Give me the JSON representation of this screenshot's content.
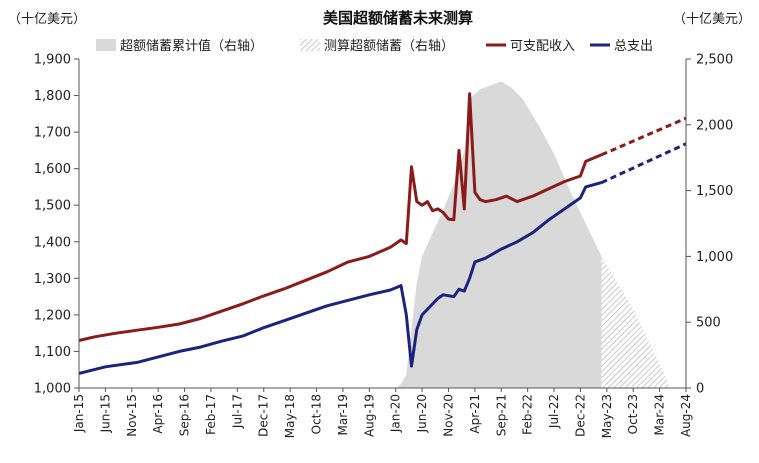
{
  "chart_data": {
    "type": "line",
    "title": "美国超额储蓄未来测算",
    "left_unit": "（十亿美元）",
    "right_unit": "（十亿美元）",
    "left_axis": {
      "min": 1000,
      "max": 1900,
      "ticks": [
        "1,000",
        "1,100",
        "1,200",
        "1,300",
        "1,400",
        "1,500",
        "1,600",
        "1,700",
        "1,800",
        "1,900"
      ]
    },
    "right_axis": {
      "min": 0,
      "max": 2500,
      "ticks": [
        "0",
        "500",
        "1,000",
        "1,500",
        "2,000",
        "2,500"
      ]
    },
    "x_range": [
      "2015-01",
      "2024-08"
    ],
    "x_ticks": [
      "Jan-15",
      "Jun-15",
      "Nov-15",
      "Apr-16",
      "Sep-16",
      "Feb-17",
      "Jul-17",
      "Dec-17",
      "May-18",
      "Oct-18",
      "Mar-19",
      "Aug-19",
      "Jan-20",
      "Jun-20",
      "Nov-20",
      "Apr-21",
      "Sep-21",
      "Feb-22",
      "Jul-22",
      "Dec-22",
      "May-23",
      "Oct-23",
      "Mar-24",
      "Aug-24"
    ],
    "legend": [
      {
        "key": "cum",
        "label": "超额储蓄累计值（右轴）",
        "style": "area",
        "color": "#d9d9d9"
      },
      {
        "key": "est",
        "label": "测算超额储蓄（右轴）",
        "style": "hatch",
        "color": "#cfcfcf"
      },
      {
        "key": "income",
        "label": "可支配收入",
        "style": "line",
        "color": "#8b1a1a"
      },
      {
        "key": "spend",
        "label": "总支出",
        "style": "line",
        "color": "#1a237e"
      }
    ],
    "series": [
      {
        "key": "income",
        "name": "可支配收入",
        "axis": "left",
        "color": "#8b1a1a",
        "points": [
          [
            "2015-01",
            1130
          ],
          [
            "2015-04",
            1140
          ],
          [
            "2015-08",
            1150
          ],
          [
            "2015-12",
            1158
          ],
          [
            "2016-04",
            1166
          ],
          [
            "2016-08",
            1175
          ],
          [
            "2016-12",
            1190
          ],
          [
            "2017-04",
            1210
          ],
          [
            "2017-08",
            1230
          ],
          [
            "2017-12",
            1252
          ],
          [
            "2018-04",
            1272
          ],
          [
            "2018-08",
            1295
          ],
          [
            "2018-12",
            1318
          ],
          [
            "2019-04",
            1345
          ],
          [
            "2019-08",
            1360
          ],
          [
            "2019-12",
            1385
          ],
          [
            "2020-02",
            1405
          ],
          [
            "2020-03",
            1395
          ],
          [
            "2020-04",
            1605
          ],
          [
            "2020-05",
            1510
          ],
          [
            "2020-06",
            1500
          ],
          [
            "2020-07",
            1510
          ],
          [
            "2020-08",
            1485
          ],
          [
            "2020-09",
            1490
          ],
          [
            "2020-10",
            1480
          ],
          [
            "2020-11",
            1462
          ],
          [
            "2020-12",
            1460
          ],
          [
            "2021-01",
            1650
          ],
          [
            "2021-02",
            1490
          ],
          [
            "2021-03",
            1805
          ],
          [
            "2021-04",
            1535
          ],
          [
            "2021-05",
            1515
          ],
          [
            "2021-06",
            1510
          ],
          [
            "2021-08",
            1515
          ],
          [
            "2021-10",
            1525
          ],
          [
            "2021-12",
            1510
          ],
          [
            "2022-03",
            1525
          ],
          [
            "2022-06",
            1545
          ],
          [
            "2022-09",
            1565
          ],
          [
            "2022-12",
            1580
          ],
          [
            "2023-01",
            1620
          ],
          [
            "2023-04",
            1638
          ]
        ]
      },
      {
        "key": "income_proj",
        "name": "可支配收入（预测）",
        "axis": "left",
        "color": "#8b1a1a",
        "dashed": true,
        "points": [
          [
            "2023-04",
            1638
          ],
          [
            "2024-08",
            1738
          ]
        ]
      },
      {
        "key": "spend",
        "name": "总支出",
        "axis": "left",
        "color": "#1a237e",
        "points": [
          [
            "2015-01",
            1040
          ],
          [
            "2015-06",
            1058
          ],
          [
            "2015-12",
            1070
          ],
          [
            "2016-04",
            1085
          ],
          [
            "2016-08",
            1100
          ],
          [
            "2016-12",
            1112
          ],
          [
            "2017-04",
            1128
          ],
          [
            "2017-08",
            1142
          ],
          [
            "2017-12",
            1165
          ],
          [
            "2018-04",
            1185
          ],
          [
            "2018-08",
            1205
          ],
          [
            "2018-12",
            1225
          ],
          [
            "2019-04",
            1240
          ],
          [
            "2019-08",
            1255
          ],
          [
            "2019-12",
            1268
          ],
          [
            "2020-02",
            1280
          ],
          [
            "2020-03",
            1200
          ],
          [
            "2020-04",
            1060
          ],
          [
            "2020-05",
            1160
          ],
          [
            "2020-06",
            1200
          ],
          [
            "2020-08",
            1230
          ],
          [
            "2020-09",
            1245
          ],
          [
            "2020-10",
            1255
          ],
          [
            "2020-12",
            1250
          ],
          [
            "2021-01",
            1270
          ],
          [
            "2021-02",
            1265
          ],
          [
            "2021-03",
            1300
          ],
          [
            "2021-04",
            1345
          ],
          [
            "2021-06",
            1355
          ],
          [
            "2021-09",
            1380
          ],
          [
            "2021-12",
            1400
          ],
          [
            "2022-03",
            1425
          ],
          [
            "2022-06",
            1460
          ],
          [
            "2022-09",
            1490
          ],
          [
            "2022-12",
            1520
          ],
          [
            "2023-01",
            1550
          ],
          [
            "2023-04",
            1562
          ]
        ]
      },
      {
        "key": "spend_proj",
        "name": "总支出（预测）",
        "axis": "left",
        "color": "#1a237e",
        "dashed": true,
        "points": [
          [
            "2023-04",
            1562
          ],
          [
            "2024-08",
            1668
          ]
        ]
      },
      {
        "key": "cum",
        "name": "超额储蓄累计值",
        "axis": "right",
        "type": "area",
        "color": "#d9d9d9",
        "points": [
          [
            "2020-01",
            0
          ],
          [
            "2020-02",
            30
          ],
          [
            "2020-03",
            100
          ],
          [
            "2020-04",
            450
          ],
          [
            "2020-05",
            800
          ],
          [
            "2020-06",
            1000
          ],
          [
            "2020-08",
            1180
          ],
          [
            "2020-10",
            1350
          ],
          [
            "2020-12",
            1550
          ],
          [
            "2021-02",
            1800
          ],
          [
            "2021-03",
            2200
          ],
          [
            "2021-05",
            2270
          ],
          [
            "2021-07",
            2300
          ],
          [
            "2021-09",
            2330
          ],
          [
            "2021-11",
            2280
          ],
          [
            "2022-01",
            2200
          ],
          [
            "2022-04",
            2000
          ],
          [
            "2022-07",
            1780
          ],
          [
            "2022-10",
            1500
          ],
          [
            "2023-01",
            1250
          ],
          [
            "2023-04",
            1000
          ]
        ]
      },
      {
        "key": "est",
        "name": "测算超额储蓄",
        "axis": "right",
        "type": "hatch",
        "color": "#cfcfcf",
        "points": [
          [
            "2023-04",
            1000
          ],
          [
            "2023-07",
            800
          ],
          [
            "2023-10",
            600
          ],
          [
            "2024-01",
            350
          ],
          [
            "2024-04",
            100
          ],
          [
            "2024-05",
            0
          ]
        ]
      }
    ]
  }
}
